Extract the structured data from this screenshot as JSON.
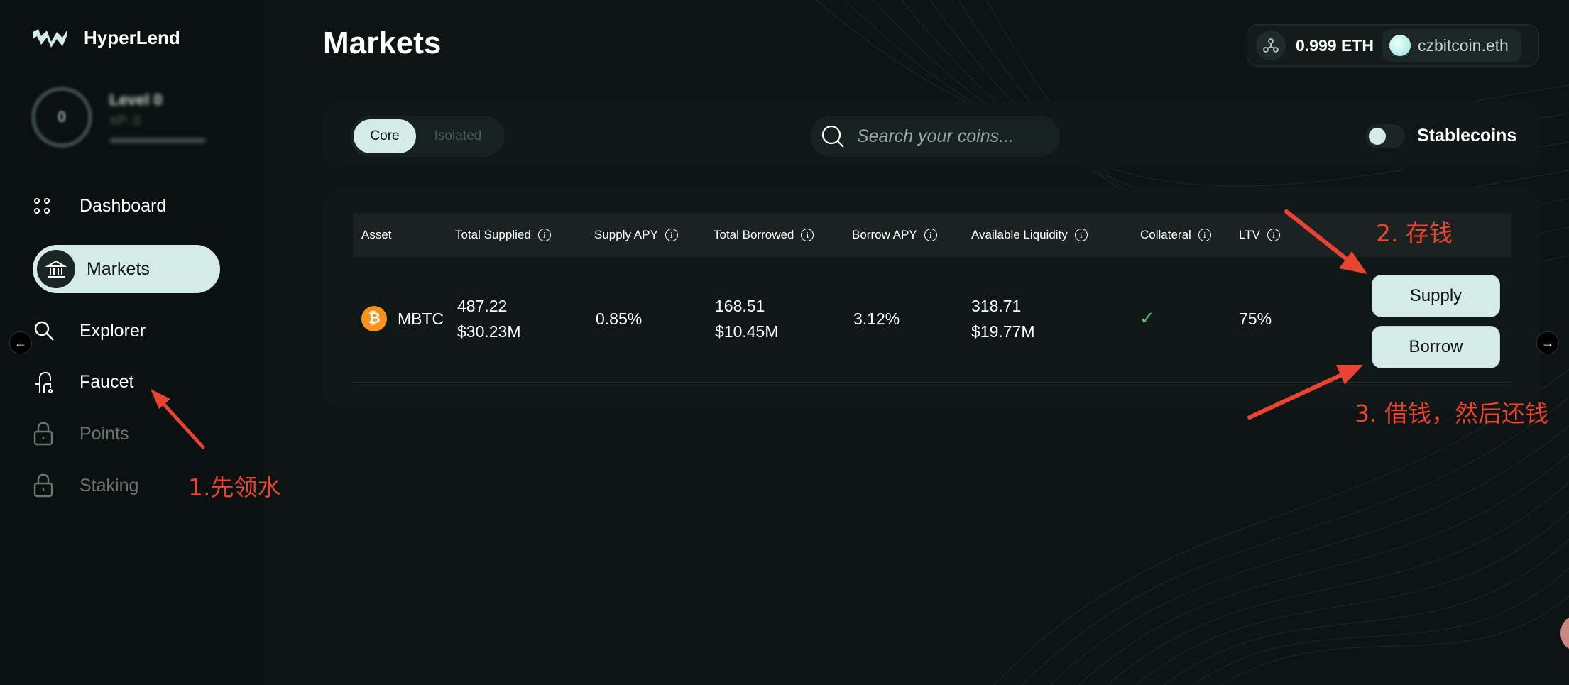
{
  "app": {
    "name": "HyperLend"
  },
  "profile": {
    "level_number": "0",
    "level_name": "Level 0",
    "xp": "XP: 0"
  },
  "sidebar": {
    "items": [
      {
        "label": "Dashboard"
      },
      {
        "label": "Markets"
      },
      {
        "label": "Explorer"
      },
      {
        "label": "Faucet"
      },
      {
        "label": "Points"
      },
      {
        "label": "Staking"
      }
    ]
  },
  "page": {
    "title": "Markets"
  },
  "wallet": {
    "balance": "0.999 ETH",
    "account": "czbitcoin.eth"
  },
  "filters": {
    "tabs": [
      {
        "label": "Core"
      },
      {
        "label": "Isolated"
      }
    ],
    "search_placeholder": "Search your coins...",
    "stablecoins_label": "Stablecoins"
  },
  "table": {
    "headers": {
      "asset": "Asset",
      "total_supplied": "Total Supplied",
      "supply_apy": "Supply APY",
      "total_borrowed": "Total Borrowed",
      "borrow_apy": "Borrow APY",
      "available_liquidity": "Available Liquidity",
      "collateral": "Collateral",
      "ltv": "LTV"
    },
    "rows": [
      {
        "asset": "MBTC",
        "total_supplied": "487.22",
        "total_supplied_usd": "$30.23M",
        "supply_apy": "0.85%",
        "total_borrowed": "168.51",
        "total_borrowed_usd": "$10.45M",
        "borrow_apy": "3.12%",
        "available_liquidity": "318.71",
        "available_liquidity_usd": "$19.77M",
        "collateral": "✓",
        "ltv": "75%",
        "supply_label": "Supply",
        "borrow_label": "Borrow"
      }
    ]
  },
  "annotations": {
    "step1": "1.先领水",
    "step2": "2. 存钱",
    "step3": "3. 借钱，然后还钱"
  },
  "colors": {
    "background": "#0d1413",
    "accent": "#d5ebe6",
    "annotation": "#e8442f",
    "bitcoin": "#f7931a",
    "check": "#4fc36b"
  }
}
